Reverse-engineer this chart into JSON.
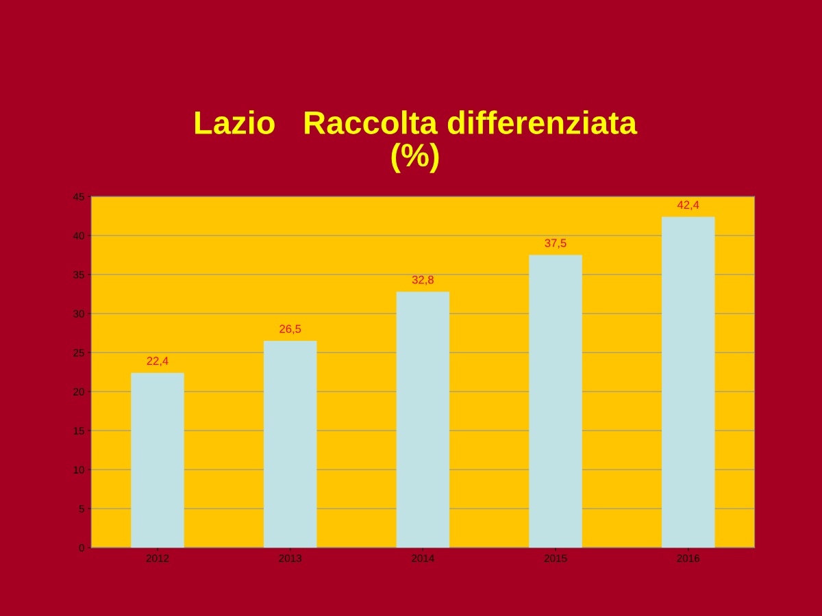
{
  "chart_data": {
    "type": "bar",
    "title": "Lazio   Raccolta differenziata\n(%)",
    "categories": [
      "2012",
      "2013",
      "2014",
      "2015",
      "2016"
    ],
    "values": [
      22.4,
      26.5,
      32.8,
      37.5,
      42.4
    ],
    "value_labels": [
      "22,4",
      "26,5",
      "32,8",
      "37,5",
      "42,4"
    ],
    "color": "#c0e2e4",
    "ylim": [
      0,
      45
    ],
    "yticks": [
      0,
      5,
      10,
      15,
      20,
      25,
      30,
      35,
      40,
      45
    ],
    "grid": "y",
    "legend": false
  }
}
